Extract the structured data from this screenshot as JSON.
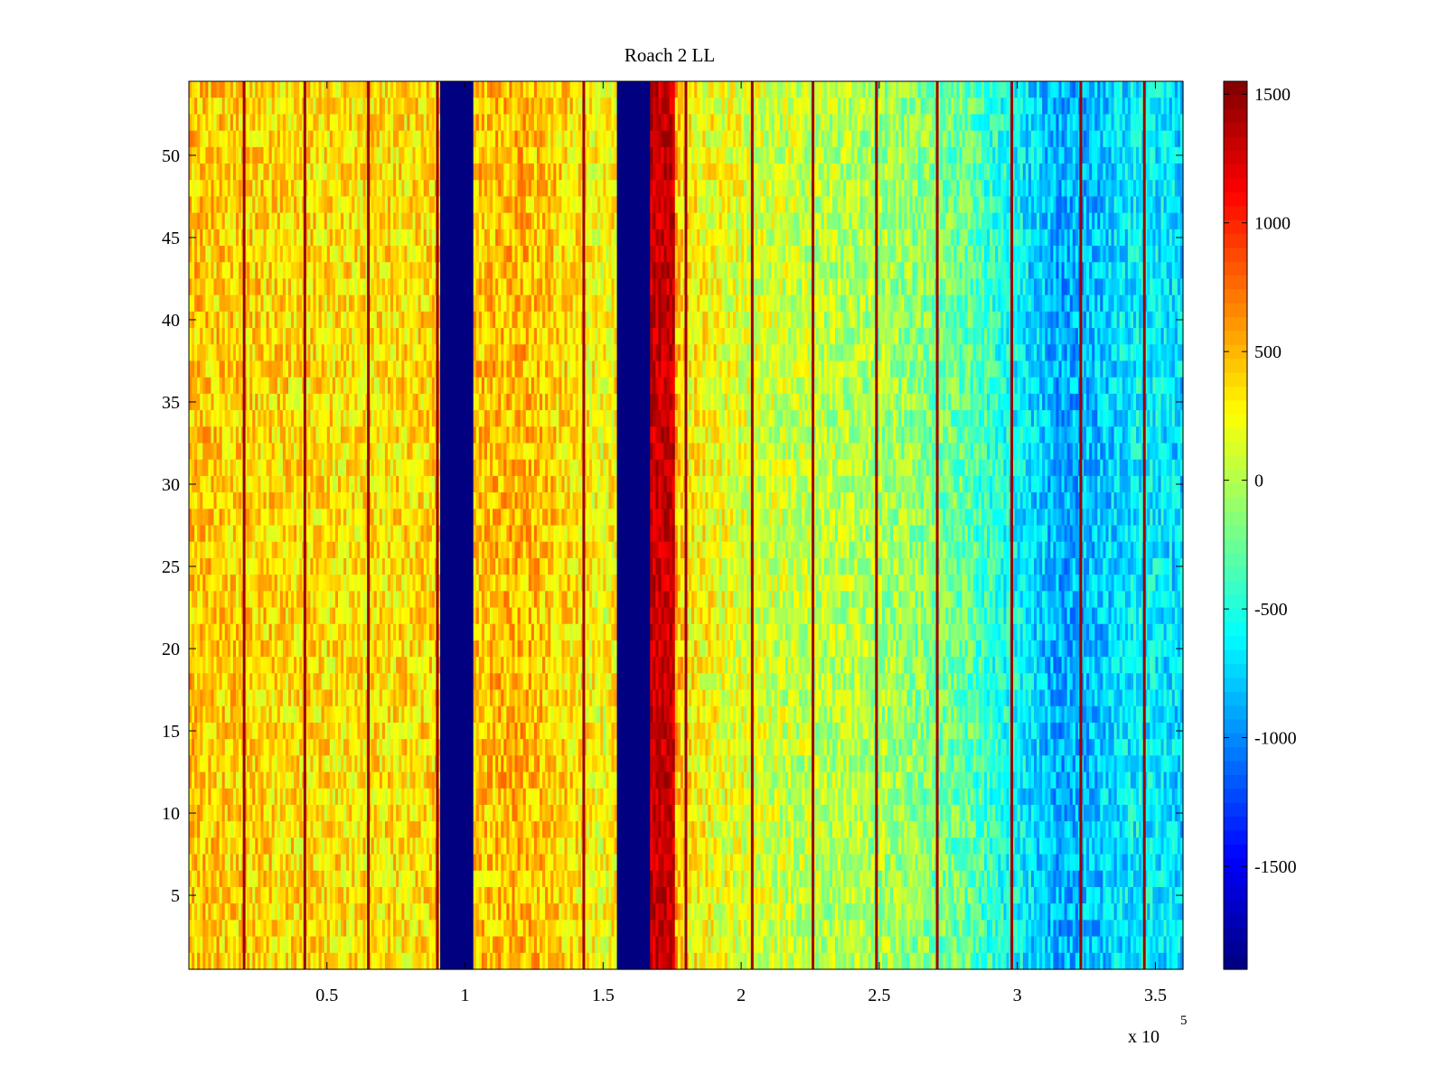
{
  "chart_data": {
    "type": "heatmap",
    "title": "Roach 2 LL",
    "xlabel": "",
    "ylabel": "",
    "x_multiplier_label": "x 10",
    "x_multiplier_exponent": "5",
    "xlim": [
      0,
      360000
    ],
    "ylim": [
      0.5,
      54.5
    ],
    "x_ticks": [
      {
        "value": 50000,
        "label": "0.5"
      },
      {
        "value": 100000,
        "label": "1"
      },
      {
        "value": 150000,
        "label": "1.5"
      },
      {
        "value": 200000,
        "label": "2"
      },
      {
        "value": 250000,
        "label": "2.5"
      },
      {
        "value": 300000,
        "label": "3"
      },
      {
        "value": 350000,
        "label": "3.5"
      }
    ],
    "y_ticks": [
      {
        "value": 5,
        "label": "5"
      },
      {
        "value": 10,
        "label": "10"
      },
      {
        "value": 15,
        "label": "15"
      },
      {
        "value": 20,
        "label": "20"
      },
      {
        "value": 25,
        "label": "25"
      },
      {
        "value": 30,
        "label": "30"
      },
      {
        "value": 35,
        "label": "35"
      },
      {
        "value": 40,
        "label": "40"
      },
      {
        "value": 45,
        "label": "45"
      },
      {
        "value": 50,
        "label": "50"
      }
    ],
    "rows": 54,
    "colormap": "jet",
    "clim": [
      -1900,
      1550
    ],
    "colorbar": {
      "range": [
        -1900,
        1550
      ],
      "ticks": [
        {
          "value": 1500,
          "label": "1500"
        },
        {
          "value": 1000,
          "label": "1000"
        },
        {
          "value": 500,
          "label": "500"
        },
        {
          "value": 0,
          "label": "0"
        },
        {
          "value": -500,
          "label": "-500"
        },
        {
          "value": -1000,
          "label": "-1000"
        },
        {
          "value": -1500,
          "label": "-1500"
        }
      ]
    },
    "column_profile": [
      [
        0,
        450
      ],
      [
        10000,
        420
      ],
      [
        20000,
        400
      ],
      [
        30000,
        380
      ],
      [
        40000,
        350
      ],
      [
        60000,
        330
      ],
      [
        80000,
        350
      ],
      [
        90000,
        380
      ],
      [
        105000,
        450
      ],
      [
        120000,
        500
      ],
      [
        140000,
        350
      ],
      [
        150000,
        200
      ],
      [
        170000,
        700
      ],
      [
        175000,
        600
      ],
      [
        180000,
        300
      ],
      [
        200000,
        150
      ],
      [
        220000,
        50
      ],
      [
        240000,
        0
      ],
      [
        260000,
        -100
      ],
      [
        280000,
        -250
      ],
      [
        300000,
        -600
      ],
      [
        315000,
        -900
      ],
      [
        330000,
        -800
      ],
      [
        345000,
        -600
      ],
      [
        360000,
        -750
      ]
    ],
    "blocked_bands": [
      {
        "x_start": 91000,
        "x_end": 103000,
        "value": -1900
      },
      {
        "x_start": 155000,
        "x_end": 167000,
        "value": -1900
      }
    ],
    "strong_band": {
      "x_start": 167000,
      "x_end": 176000,
      "value": 1300
    },
    "rfi_lines_x": [
      20000,
      42000,
      65000,
      90000,
      143000,
      180000,
      204000,
      226000,
      249000,
      271000,
      298000,
      323000,
      346000
    ],
    "rfi_line_value": 1450,
    "noise_amplitude": 300
  }
}
